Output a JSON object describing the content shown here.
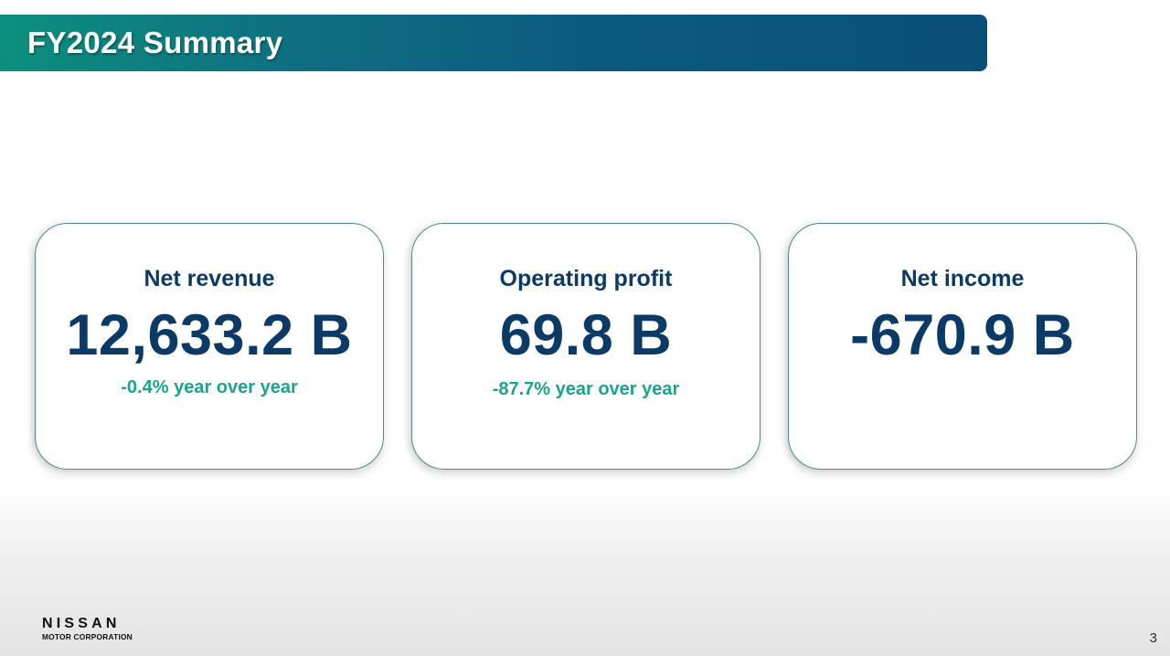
{
  "header": {
    "title": "FY2024 Summary"
  },
  "cards": [
    {
      "label": "Net revenue",
      "value": "12,633.2 B",
      "change": "-0.4% year over year"
    },
    {
      "label": "Operating profit",
      "value": "69.8 B",
      "change": "-87.7% year over year"
    },
    {
      "label": "Net income",
      "value": "-670.9 B",
      "change": ""
    }
  ],
  "footer": {
    "logo_brand": "NISSAN",
    "logo_sub": "MOTOR CORPORATION",
    "page_number": "3"
  },
  "colors": {
    "title_bar_start": "#0c8f7d",
    "title_bar_end": "#0a4f78",
    "value_text": "#0c3a66",
    "change_text": "#1aa58a"
  }
}
